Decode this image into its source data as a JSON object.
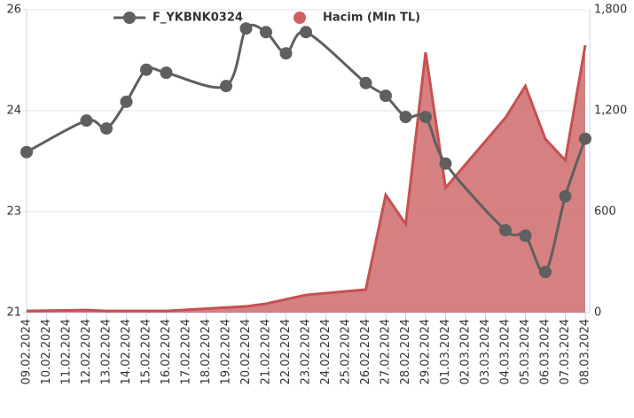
{
  "chart_data": {
    "type": "combo",
    "categories": [
      "09.02.2024",
      "10.02.2024",
      "11.02.2024",
      "12.02.2024",
      "13.02.2024",
      "14.02.2024",
      "15.02.2024",
      "16.02.2024",
      "17.02.2024",
      "18.02.2024",
      "19.02.2024",
      "20.02.2024",
      "21.02.2024",
      "22.02.2024",
      "23.02.2024",
      "24.02.2024",
      "25.02.2024",
      "26.02.2024",
      "27.02.2024",
      "28.02.2024",
      "29.02.2024",
      "01.03.2024",
      "02.03.2024",
      "03.03.2024",
      "04.03.2024",
      "05.03.2024",
      "06.03.2024",
      "07.03.2024",
      "08.03.2024"
    ],
    "series": [
      {
        "name": "F_YKBNK0324",
        "type": "line",
        "color": "#5f5f5f",
        "x": [
          "09.02.2024",
          "12.02.2024",
          "13.02.2024",
          "14.02.2024",
          "15.02.2024",
          "16.02.2024",
          "19.02.2024",
          "20.02.2024",
          "21.02.2024",
          "22.02.2024",
          "23.02.2024",
          "26.02.2024",
          "27.02.2024",
          "28.02.2024",
          "29.02.2024",
          "01.03.2024",
          "04.03.2024",
          "05.03.2024",
          "06.03.2024",
          "07.03.2024",
          "08.03.2024"
        ],
        "values": [
          23.65,
          24.17,
          24.04,
          24.48,
          25.01,
          24.96,
          24.74,
          25.69,
          25.63,
          25.28,
          25.63,
          24.79,
          24.58,
          24.23,
          24.23,
          23.46,
          22.36,
          22.27,
          21.67,
          22.92,
          23.87
        ]
      },
      {
        "name": "Hacim (Mln TL)",
        "type": "area",
        "color": "#d07373",
        "axis": "y2",
        "x": [
          "09.02.2024",
          "12.02.2024",
          "13.02.2024",
          "14.02.2024",
          "15.02.2024",
          "16.02.2024",
          "19.02.2024",
          "20.02.2024",
          "21.02.2024",
          "22.02.2024",
          "23.02.2024",
          "26.02.2024",
          "27.02.2024",
          "28.02.2024",
          "29.02.2024",
          "01.03.2024",
          "04.03.2024",
          "05.03.2024",
          "06.03.2024",
          "07.03.2024",
          "08.03.2024"
        ],
        "values": [
          10,
          15,
          10,
          10,
          10,
          10,
          30,
          37,
          53,
          79,
          105,
          137,
          700,
          526,
          1547,
          742,
          1158,
          1347,
          1032,
          905,
          1589
        ]
      }
    ],
    "ylim": [
      21,
      26
    ],
    "yticks": [
      21,
      {
        "value": 22.667,
        "label": "23"
      },
      {
        "value": 24.333,
        "label": "24"
      },
      26
    ],
    "y2lim": [
      0,
      1800
    ],
    "y2ticks": [
      0,
      600,
      {
        "value": 1200,
        "label": "1,200"
      },
      {
        "value": 1800,
        "label": "1,800"
      }
    ],
    "grid": true
  }
}
